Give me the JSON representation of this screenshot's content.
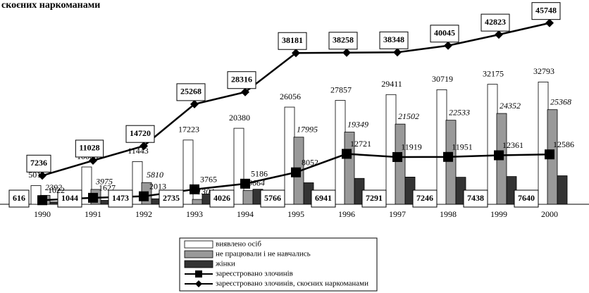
{
  "chart_data": {
    "type": "bar",
    "title": "скоєних наркоманами",
    "categories": [
      "1990",
      "1991",
      "1992",
      "1993",
      "1994",
      "1995",
      "1996",
      "1997",
      "1998",
      "1999",
      "2000"
    ],
    "ylim": [
      0,
      51000
    ],
    "y2lim": [
      0,
      48000
    ],
    "series": [
      {
        "name": "виявлено осіб",
        "type": "bar",
        "color": "#ffffff",
        "label_style": "plain",
        "values": [
          5011,
          10006,
          11443,
          17223,
          20380,
          26056,
          27857,
          29411,
          30719,
          32175,
          32793
        ]
      },
      {
        "name": "не працювали і не навчались",
        "type": "bar",
        "color": "#999999",
        "label_style": "italic",
        "values": [
          2392,
          3975,
          5810,
          1304,
          3664,
          17995,
          19349,
          21502,
          22533,
          24352,
          25368
        ]
      },
      {
        "name": "жінки",
        "type": "bar",
        "color": "#333333",
        "label_style": "boxed",
        "values": [
          616,
          1044,
          1473,
          2735,
          4026,
          5766,
          6941,
          7291,
          7246,
          7438,
          7640
        ]
      },
      {
        "name": "зареєстровано злочинів",
        "type": "line",
        "axis": "y2",
        "marker": "square",
        "color": "#000000",
        "label_style": "plain",
        "values": [
          1022,
          1627,
          2013,
          3765,
          5186,
          8052,
          12721,
          11919,
          11951,
          12361,
          12586
        ]
      },
      {
        "name": "зареєстровано злочинів, скоєних наркоманами",
        "type": "line",
        "axis": "y2",
        "marker": "diamond",
        "color": "#000000",
        "label_style": "boxed",
        "values": [
          7236,
          11028,
          14720,
          25268,
          28316,
          38181,
          38258,
          38348,
          40045,
          42823,
          45748
        ]
      }
    ]
  }
}
